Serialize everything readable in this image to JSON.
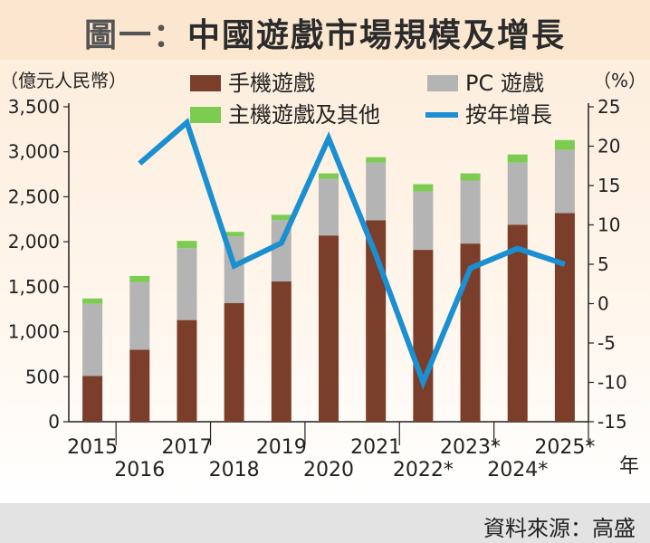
{
  "header": {
    "prefix": "圖一：",
    "title": "中國遊戲市場規模及增長"
  },
  "footer": {
    "source": "資料來源：高盛"
  },
  "chart_data": {
    "type": "bar",
    "stacked": true,
    "categories": [
      "2015",
      "2016",
      "2017",
      "2018",
      "2019",
      "2020",
      "2021",
      "2022*",
      "2023*",
      "2024*",
      "2025*"
    ],
    "series": [
      {
        "name": "手機遊戲",
        "color": "#7a3e2b",
        "values": [
          510,
          800,
          1130,
          1320,
          1560,
          2070,
          2240,
          1910,
          1980,
          2190,
          2320
        ]
      },
      {
        "name": "PC 遊戲",
        "color": "#b4b4b4",
        "values": [
          800,
          750,
          800,
          740,
          680,
          630,
          640,
          650,
          700,
          690,
          700
        ]
      },
      {
        "name": "主機遊戲及其他",
        "color": "#7ccc52",
        "values": [
          60,
          70,
          80,
          50,
          60,
          60,
          60,
          80,
          80,
          90,
          110
        ]
      }
    ],
    "line": {
      "name": "按年增長",
      "color": "#1a8fd2",
      "axis": "right",
      "x": [
        "2016",
        "2017",
        "2018",
        "2019",
        "2020",
        "2021",
        "2022*",
        "2023*",
        "2024*",
        "2025*"
      ],
      "values": [
        17.8,
        23,
        4.8,
        7.7,
        21,
        6.2,
        -10,
        4.5,
        7,
        5
      ]
    },
    "ylabel_left": "（億元人民幣）",
    "ylabel_right": "（%）",
    "xlabel": "年",
    "ylim_left": [
      0,
      3500
    ],
    "yticks_left": [
      "0",
      "500",
      "1,000",
      "1,500",
      "2,000",
      "2,500",
      "3,000",
      "3,500"
    ],
    "ylim_right": [
      -15,
      25
    ],
    "yticks_right": [
      "-15",
      "-10",
      "-5",
      "0",
      "5",
      "10",
      "15",
      "20",
      "25"
    ],
    "grid": false,
    "legend_position": "top"
  }
}
